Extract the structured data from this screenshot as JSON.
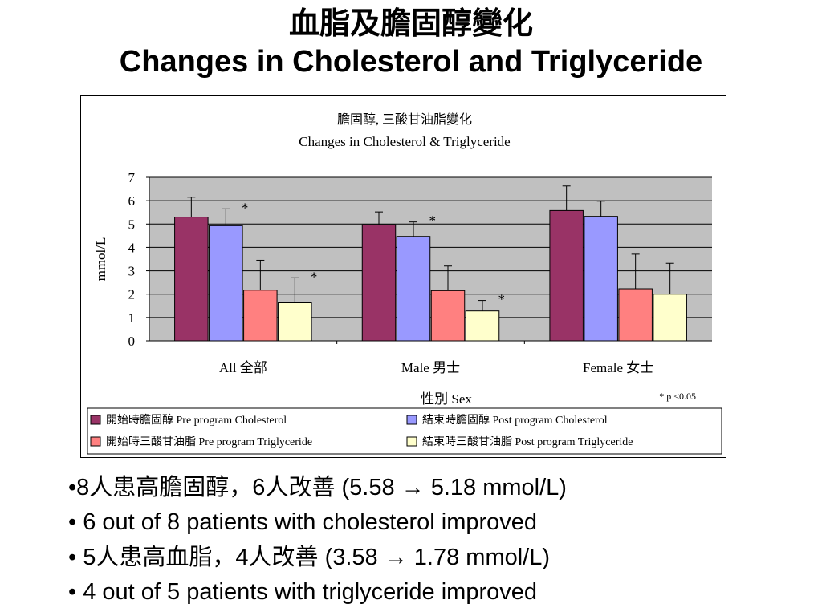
{
  "slide": {
    "title_zh": "血脂及膽固醇變化",
    "title_en": "Changes in Cholesterol and Triglyceride"
  },
  "chart_data": {
    "type": "bar",
    "title_zh": "膽固醇, 三酸甘油脂變化",
    "title_en": "Changes in Cholesterol & Triglyceride",
    "ylabel": "mmol/L",
    "xlabel": "性別 Sex",
    "ylim": [
      0,
      7
    ],
    "yticks": [
      "0",
      "1",
      "2",
      "3",
      "4",
      "5",
      "6",
      "7"
    ],
    "grid": true,
    "background": "#c0c0c0",
    "categories": [
      "All 全部",
      "Male 男士",
      "Female 女士"
    ],
    "series": [
      {
        "name": "開始時膽固醇 Pre program Cholesterol",
        "color": "#993366",
        "values": [
          5.3,
          4.97,
          5.58
        ],
        "errors": [
          0.85,
          0.55,
          1.05
        ],
        "stars": [
          "",
          "",
          ""
        ]
      },
      {
        "name": "結束時膽固醇 Post program Cholesterol",
        "color": "#9999ff",
        "values": [
          4.93,
          4.47,
          5.33
        ],
        "errors": [
          0.72,
          0.62,
          0.65
        ],
        "stars": [
          "*",
          "*",
          ""
        ]
      },
      {
        "name": "開始時三酸甘油脂 Pre program Triglyceride",
        "color": "#ff8080",
        "values": [
          2.17,
          2.15,
          2.23
        ],
        "errors": [
          1.28,
          1.05,
          1.48
        ],
        "stars": [
          "",
          "",
          ""
        ]
      },
      {
        "name": "結束時三酸甘油脂 Post program Triglyceride",
        "color": "#ffffcc",
        "values": [
          1.63,
          1.28,
          2.0
        ],
        "errors": [
          1.07,
          0.45,
          1.32
        ],
        "stars": [
          "*",
          "*",
          ""
        ]
      }
    ],
    "annotation": "* p <0.05",
    "star_symbol": "*",
    "legend_position": "bottom"
  },
  "bullets": [
    {
      "prefix": "•8",
      "cjk": "人患高膽固醇，",
      "mid": "6",
      "cjk2": "人改善",
      "rest": " (5.58 → 5.18 mmol/L)"
    },
    {
      "text": "• 6 out of 8 patients with cholesterol improved"
    },
    {
      "prefix": "• 5",
      "cjk": "人患高血脂，",
      "mid": "4",
      "cjk2": "人改善",
      "rest": " (3.58 → 1.78 mmol/L)"
    },
    {
      "text": "• 4 out of 5 patients with triglyceride improved"
    }
  ]
}
